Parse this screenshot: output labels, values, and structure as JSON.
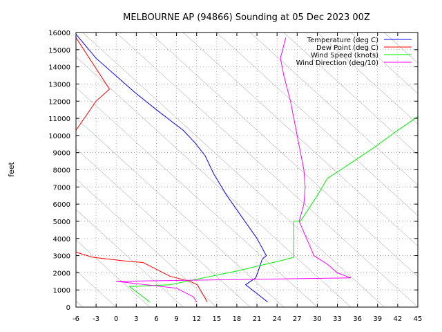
{
  "chart_data": {
    "type": "line",
    "title": "MELBOURNE AP (94866) Sounding at 05 Dec 2023 00Z",
    "xlabel": "",
    "ylabel": "feet",
    "xlim": [
      -6,
      45
    ],
    "ylim": [
      0,
      16000
    ],
    "x_ticks": [
      -6,
      -3,
      0,
      3,
      6,
      9,
      12,
      15,
      18,
      21,
      24,
      27,
      30,
      33,
      36,
      39,
      42,
      45
    ],
    "y_ticks": [
      0,
      1000,
      2000,
      3000,
      4000,
      5000,
      6000,
      7000,
      8000,
      9000,
      10000,
      11000,
      12000,
      13000,
      14000,
      15000,
      16000
    ],
    "grid": true,
    "legend_position": "top-right",
    "series": [
      {
        "name": "Temperature (deg C)",
        "color": "#0000ff",
        "points": [
          [
            22.6,
            300
          ],
          [
            19.3,
            1300
          ],
          [
            20.8,
            1700
          ],
          [
            21.1,
            2000
          ],
          [
            21.8,
            2800
          ],
          [
            22.4,
            3000
          ],
          [
            21.0,
            4000
          ],
          [
            19.2,
            5000
          ],
          [
            16.5,
            6500
          ],
          [
            14.5,
            7800
          ],
          [
            13.3,
            8800
          ],
          [
            11.7,
            9600
          ],
          [
            10.0,
            10300
          ],
          [
            6.0,
            11500
          ],
          [
            2.8,
            12500
          ],
          [
            -3.0,
            14500
          ],
          [
            -6.0,
            15900
          ]
        ]
      },
      {
        "name": "Dew Point (deg C)",
        "color": "#ff0000",
        "points": [
          [
            13.6,
            300
          ],
          [
            12.1,
            1300
          ],
          [
            11.0,
            1500
          ],
          [
            8.0,
            1800
          ],
          [
            4.0,
            2600
          ],
          [
            1.0,
            2700
          ],
          [
            -3.5,
            2900
          ],
          [
            -6.0,
            3200
          ],
          [
            -6.0,
            10300
          ],
          [
            -3.0,
            12000
          ],
          [
            -1.0,
            12700
          ],
          [
            -4.0,
            14500
          ],
          [
            -6.0,
            15700
          ]
        ]
      },
      {
        "name": "Wind Speed (knots)",
        "color": "#00ee00",
        "points": [
          [
            5.0,
            300
          ],
          [
            2.0,
            1200
          ],
          [
            8.0,
            1300
          ],
          [
            18.0,
            2100
          ],
          [
            24.5,
            2700
          ],
          [
            26.5,
            2900
          ],
          [
            26.5,
            5000
          ],
          [
            27.5,
            5000
          ],
          [
            30.0,
            6500
          ],
          [
            31.5,
            7500
          ],
          [
            33.5,
            8000
          ],
          [
            38.5,
            9300
          ],
          [
            42.0,
            10300
          ],
          [
            45.0,
            11100
          ]
        ]
      },
      {
        "name": "Wind Direction (deg/10)",
        "color": "#ff00ff",
        "points": [
          [
            12.0,
            300
          ],
          [
            11.5,
            600
          ],
          [
            9.0,
            1100
          ],
          [
            0.0,
            1500
          ],
          [
            35.0,
            1700
          ],
          [
            33.0,
            2000
          ],
          [
            31.5,
            2500
          ],
          [
            29.5,
            3000
          ],
          [
            27.3,
            5000
          ],
          [
            28.0,
            6000
          ],
          [
            28.2,
            7000
          ],
          [
            28.0,
            8000
          ],
          [
            27.5,
            9000
          ],
          [
            27.0,
            10000
          ],
          [
            26.5,
            11000
          ],
          [
            26.0,
            12000
          ],
          [
            25.0,
            13500
          ],
          [
            24.5,
            14500
          ],
          [
            25.3,
            15700
          ]
        ]
      }
    ]
  }
}
